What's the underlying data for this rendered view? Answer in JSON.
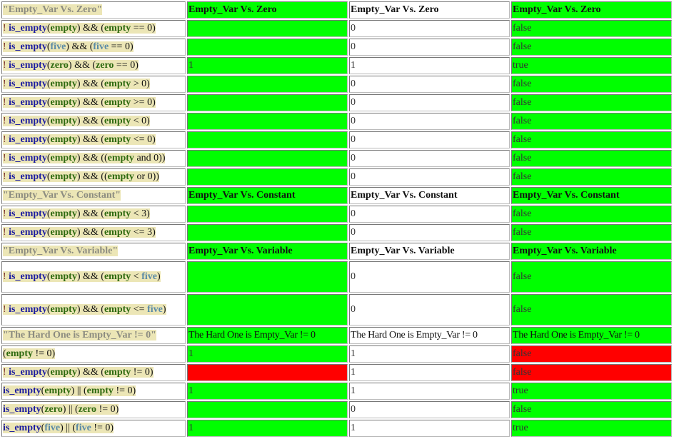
{
  "colors": {
    "green": "#00ff00",
    "red": "#ff0000",
    "white": "#ffffff"
  },
  "rows": [
    {
      "type": "header",
      "title": "\"Empty_Var Vs. Zero\"",
      "labels": [
        "Empty_Var Vs. Zero",
        "Empty_Var Vs. Zero",
        "Empty_Var Vs. Zero"
      ],
      "bg": [
        "green",
        "white",
        "green"
      ]
    },
    {
      "type": "test",
      "expr": [
        [
          "! ",
          "bang"
        ],
        [
          "is_empty",
          "fn"
        ],
        [
          "(",
          "op"
        ],
        [
          "empty",
          "var"
        ],
        [
          ") && (",
          "op"
        ],
        [
          "empty",
          "var"
        ],
        [
          " == 0)",
          "op"
        ]
      ],
      "c2": {
        "v": "",
        "bg": "green"
      },
      "c3": "0",
      "c4": {
        "v": "false",
        "bg": "green"
      }
    },
    {
      "type": "test",
      "expr": [
        [
          "! ",
          "bang"
        ],
        [
          "is_empty",
          "fn"
        ],
        [
          "(",
          "op"
        ],
        [
          "five",
          "var2"
        ],
        [
          ") && (",
          "op"
        ],
        [
          "five",
          "var2"
        ],
        [
          " == 0)",
          "op"
        ]
      ],
      "c2": {
        "v": "",
        "bg": "green"
      },
      "c3": "0",
      "c4": {
        "v": "false",
        "bg": "green"
      }
    },
    {
      "type": "test",
      "expr": [
        [
          "! ",
          "bang"
        ],
        [
          "is_empty",
          "fn"
        ],
        [
          "(",
          "op"
        ],
        [
          "zero",
          "var"
        ],
        [
          ") && (",
          "op"
        ],
        [
          "zero",
          "var"
        ],
        [
          " == 0)",
          "op"
        ]
      ],
      "c2": {
        "v": "1",
        "bg": "green"
      },
      "c3": "1",
      "c4": {
        "v": "true",
        "bg": "green"
      }
    },
    {
      "type": "test",
      "expr": [
        [
          "! ",
          "bang"
        ],
        [
          "is_empty",
          "fn"
        ],
        [
          "(",
          "op"
        ],
        [
          "empty",
          "var"
        ],
        [
          ") && (",
          "op"
        ],
        [
          "empty",
          "var"
        ],
        [
          " > 0)",
          "op"
        ]
      ],
      "c2": {
        "v": "",
        "bg": "green"
      },
      "c3": "0",
      "c4": {
        "v": "false",
        "bg": "green"
      }
    },
    {
      "type": "test",
      "expr": [
        [
          "! ",
          "bang"
        ],
        [
          "is_empty",
          "fn"
        ],
        [
          "(",
          "op"
        ],
        [
          "empty",
          "var"
        ],
        [
          ") && (",
          "op"
        ],
        [
          "empty",
          "var"
        ],
        [
          " >= 0)",
          "op"
        ]
      ],
      "c2": {
        "v": "",
        "bg": "green"
      },
      "c3": "0",
      "c4": {
        "v": "false",
        "bg": "green"
      }
    },
    {
      "type": "test",
      "expr": [
        [
          "! ",
          "bang"
        ],
        [
          "is_empty",
          "fn"
        ],
        [
          "(",
          "op"
        ],
        [
          "empty",
          "var"
        ],
        [
          ") && (",
          "op"
        ],
        [
          "empty",
          "var"
        ],
        [
          " < 0)",
          "op"
        ]
      ],
      "c2": {
        "v": "",
        "bg": "green"
      },
      "c3": "0",
      "c4": {
        "v": "false",
        "bg": "green"
      }
    },
    {
      "type": "test",
      "expr": [
        [
          "! ",
          "bang"
        ],
        [
          "is_empty",
          "fn"
        ],
        [
          "(",
          "op"
        ],
        [
          "empty",
          "var"
        ],
        [
          ") && (",
          "op"
        ],
        [
          "empty",
          "var"
        ],
        [
          " <= 0)",
          "op"
        ]
      ],
      "c2": {
        "v": "",
        "bg": "green"
      },
      "c3": "0",
      "c4": {
        "v": "false",
        "bg": "green"
      }
    },
    {
      "type": "test",
      "expr": [
        [
          "! ",
          "bang"
        ],
        [
          "is_empty",
          "fn"
        ],
        [
          "(",
          "op"
        ],
        [
          "empty",
          "var"
        ],
        [
          ") && ((",
          "op"
        ],
        [
          "empty",
          "var"
        ],
        [
          " and 0))",
          "op"
        ]
      ],
      "c2": {
        "v": "",
        "bg": "green"
      },
      "c3": "0",
      "c4": {
        "v": "false",
        "bg": "green"
      }
    },
    {
      "type": "test",
      "expr": [
        [
          "! ",
          "bang"
        ],
        [
          "is_empty",
          "fn"
        ],
        [
          "(",
          "op"
        ],
        [
          "empty",
          "var"
        ],
        [
          ") && ((",
          "op"
        ],
        [
          "empty",
          "var"
        ],
        [
          " or 0))",
          "op"
        ]
      ],
      "c2": {
        "v": "",
        "bg": "green"
      },
      "c3": "0",
      "c4": {
        "v": "false",
        "bg": "green"
      }
    },
    {
      "type": "header",
      "title": "\"Empty_Var Vs. Constant\"",
      "labels": [
        "Empty_Var Vs. Constant",
        "Empty_Var Vs. Constant",
        "Empty_Var Vs. Constant"
      ],
      "bg": [
        "green",
        "white",
        "green"
      ]
    },
    {
      "type": "test",
      "expr": [
        [
          "! ",
          "bang"
        ],
        [
          "is_empty",
          "fn"
        ],
        [
          "(",
          "op"
        ],
        [
          "empty",
          "var"
        ],
        [
          ") && (",
          "op"
        ],
        [
          "empty",
          "var"
        ],
        [
          " < 3)",
          "op"
        ]
      ],
      "c2": {
        "v": "",
        "bg": "green"
      },
      "c3": "0",
      "c4": {
        "v": "false",
        "bg": "green"
      }
    },
    {
      "type": "test",
      "expr": [
        [
          "! ",
          "bang"
        ],
        [
          "is_empty",
          "fn"
        ],
        [
          "(",
          "op"
        ],
        [
          "empty",
          "var"
        ],
        [
          ") && (",
          "op"
        ],
        [
          "empty",
          "var"
        ],
        [
          " <= 3)",
          "op"
        ]
      ],
      "c2": {
        "v": "",
        "bg": "green"
      },
      "c3": "0",
      "c4": {
        "v": "false",
        "bg": "green"
      }
    },
    {
      "type": "header",
      "title": "\"Empty_Var Vs. Variable\"",
      "labels": [
        "Empty_Var Vs. Variable",
        "Empty_Var Vs. Variable",
        "Empty_Var Vs. Variable"
      ],
      "bg": [
        "green",
        "white",
        "green"
      ]
    },
    {
      "type": "test",
      "tall": true,
      "expr": [
        [
          "! ",
          "bang"
        ],
        [
          "is_empty",
          "fn"
        ],
        [
          "(",
          "op"
        ],
        [
          "empty",
          "var"
        ],
        [
          ") && (",
          "op"
        ],
        [
          "empty",
          "var"
        ],
        [
          " < ",
          "op"
        ],
        [
          "five",
          "var2"
        ],
        [
          ")",
          "op"
        ]
      ],
      "c2": {
        "v": "",
        "bg": "green"
      },
      "c3": "0",
      "c4": {
        "v": "false",
        "bg": "green"
      }
    },
    {
      "type": "test",
      "tall": true,
      "expr": [
        [
          "! ",
          "bang"
        ],
        [
          "is_empty",
          "fn"
        ],
        [
          "(",
          "op"
        ],
        [
          "empty",
          "var"
        ],
        [
          ") && (",
          "op"
        ],
        [
          "empty",
          "var"
        ],
        [
          " <= ",
          "op"
        ],
        [
          "five",
          "var2"
        ],
        [
          ")",
          "op"
        ]
      ],
      "c2": {
        "v": "",
        "bg": "green"
      },
      "c3": "0",
      "c4": {
        "v": "false",
        "bg": "green"
      }
    },
    {
      "type": "header",
      "hard": true,
      "title": "\"The Hard One is Empty_Var != 0\"",
      "labels": [
        "The Hard One is Empty_Var != 0",
        "The Hard One is Empty_Var != 0",
        "The Hard One is Empty_Var != 0"
      ],
      "bg": [
        "green",
        "white",
        "green"
      ]
    },
    {
      "type": "test",
      "expr": [
        [
          "(",
          "op"
        ],
        [
          "empty",
          "var"
        ],
        [
          " != 0)",
          "op"
        ]
      ],
      "c2": {
        "v": "1",
        "bg": "green"
      },
      "c3": "1",
      "c4": {
        "v": "false",
        "bg": "red"
      }
    },
    {
      "type": "test",
      "expr": [
        [
          "! ",
          "bang"
        ],
        [
          "is_empty",
          "fn"
        ],
        [
          "(",
          "op"
        ],
        [
          "empty",
          "var"
        ],
        [
          ") && (",
          "op"
        ],
        [
          "empty",
          "var"
        ],
        [
          " != 0)",
          "op"
        ]
      ],
      "c2": {
        "v": "",
        "bg": "red"
      },
      "c3": "1",
      "c4": {
        "v": "false",
        "bg": "red"
      }
    },
    {
      "type": "test",
      "expr": [
        [
          "is_empty",
          "fn"
        ],
        [
          "(",
          "op"
        ],
        [
          "empty",
          "var"
        ],
        [
          ") || (",
          "op"
        ],
        [
          "empty",
          "var"
        ],
        [
          " != 0)",
          "op"
        ]
      ],
      "c2": {
        "v": "1",
        "bg": "green"
      },
      "c3": "1",
      "c4": {
        "v": "true",
        "bg": "green"
      }
    },
    {
      "type": "test",
      "expr": [
        [
          "is_empty",
          "fn"
        ],
        [
          "(",
          "op"
        ],
        [
          "zero",
          "var"
        ],
        [
          ") || (",
          "op"
        ],
        [
          "zero",
          "var"
        ],
        [
          " != 0)",
          "op"
        ]
      ],
      "c2": {
        "v": "",
        "bg": "green"
      },
      "c3": "0",
      "c4": {
        "v": "false",
        "bg": "green"
      }
    },
    {
      "type": "test",
      "expr": [
        [
          "is_empty",
          "fn"
        ],
        [
          "(",
          "op"
        ],
        [
          "five",
          "var2"
        ],
        [
          ") || (",
          "op"
        ],
        [
          "five",
          "var2"
        ],
        [
          " != 0)",
          "op"
        ]
      ],
      "c2": {
        "v": "1",
        "bg": "green"
      },
      "c3": "1",
      "c4": {
        "v": "true",
        "bg": "green"
      }
    }
  ]
}
